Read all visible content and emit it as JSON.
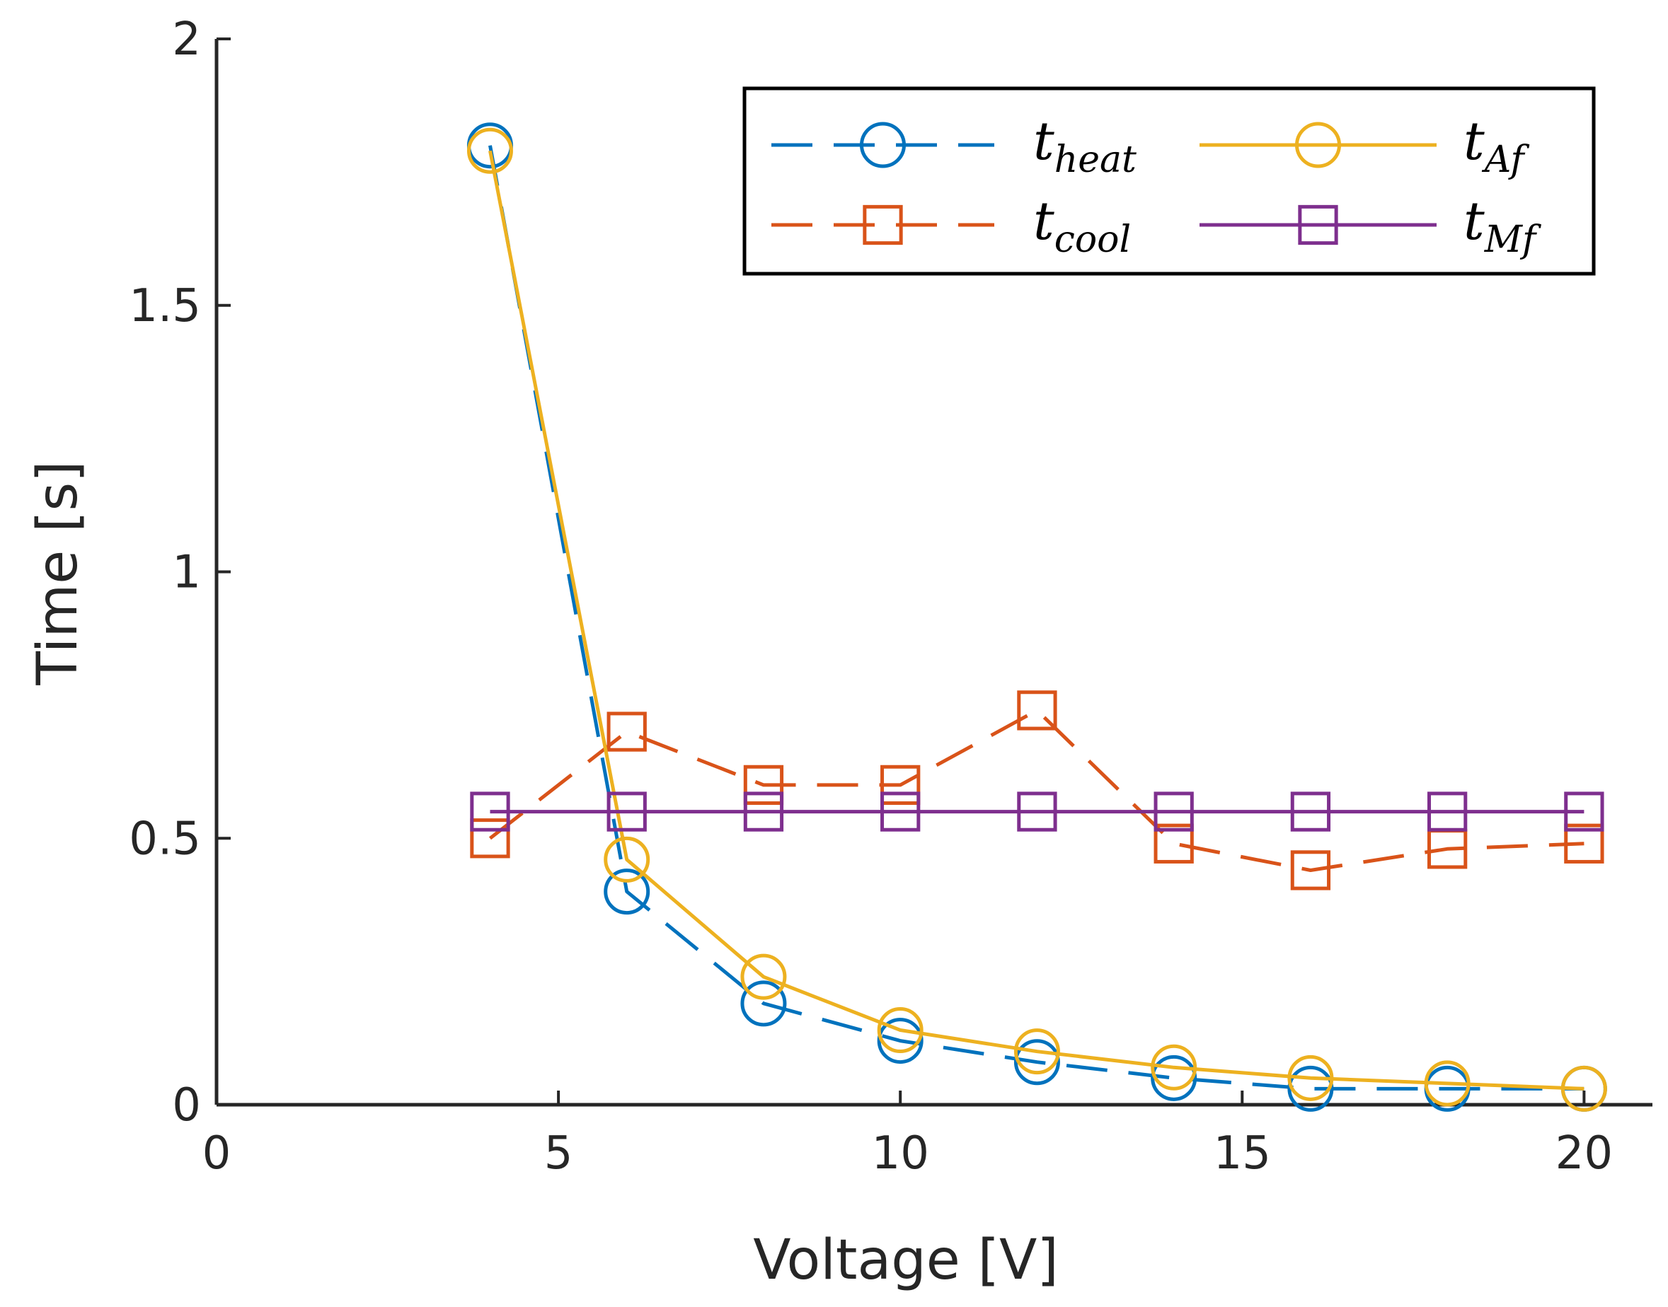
{
  "chart_data": {
    "type": "line",
    "title": "",
    "xlabel": "Voltage [V]",
    "ylabel": "Time [s]",
    "xlim": [
      0,
      21
    ],
    "ylim": [
      0,
      2
    ],
    "xticks": [
      0,
      5,
      10,
      15,
      20
    ],
    "xtick_labels": [
      "0",
      "5",
      "10",
      "15",
      "20"
    ],
    "yticks": [
      0,
      0.5,
      1,
      1.5,
      2
    ],
    "ytick_labels": [
      "0",
      "0.5",
      "1",
      "1.5",
      "2"
    ],
    "grid": false,
    "legend_position": "top-right",
    "legend_columns": 2,
    "x": [
      4,
      6,
      8,
      10,
      12,
      14,
      16,
      18,
      20
    ],
    "series": [
      {
        "name": "t",
        "subscript": "heat",
        "color": "#0072BD",
        "line": "dashed",
        "marker": "circle",
        "values": [
          1.8,
          0.4,
          0.19,
          0.12,
          0.08,
          0.05,
          0.03,
          0.03,
          0.03
        ]
      },
      {
        "name": "t",
        "subscript": "cool",
        "color": "#D95319",
        "line": "dashed",
        "marker": "square",
        "values": [
          0.5,
          0.7,
          0.6,
          0.6,
          0.74,
          0.49,
          0.44,
          0.48,
          0.49
        ]
      },
      {
        "name": "t",
        "subscript": "Af",
        "color": "#EDB120",
        "line": "solid",
        "marker": "circle",
        "values": [
          1.79,
          0.46,
          0.24,
          0.14,
          0.1,
          0.07,
          0.05,
          0.04,
          0.03
        ]
      },
      {
        "name": "t",
        "subscript": "Mf",
        "color": "#7E2F8E",
        "line": "solid",
        "marker": "square",
        "values": [
          0.55,
          0.55,
          0.55,
          0.55,
          0.55,
          0.55,
          0.55,
          0.55,
          0.55
        ]
      }
    ]
  }
}
